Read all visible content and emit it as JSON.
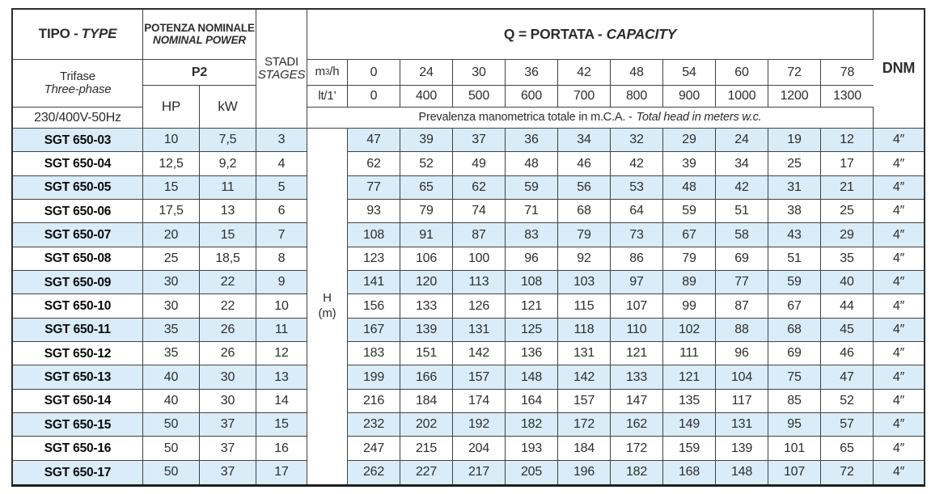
{
  "colors": {
    "row_alt": "#d9ecf8",
    "border_inner": "#424242",
    "border_outer": "#2b2b2b",
    "text": "#2d2d2d"
  },
  "table": {
    "header": {
      "tipo": {
        "it": "TIPO -",
        "en": "TYPE"
      },
      "potenza": {
        "it": "POTENZA NOMINALE",
        "en": "NOMINAL POWER"
      },
      "p2": "P2",
      "hp": "HP",
      "kw": "kW",
      "stadi": {
        "it": "STADI",
        "en": "STAGES"
      },
      "capacity": {
        "it": "Q = PORTATA -",
        "en": "CAPACITY"
      },
      "dnm": "DNM",
      "phase": {
        "it": "Trifase",
        "en": "Three-phase"
      },
      "voltage": "230/400V-50Hz",
      "m3h": {
        "pre": "m",
        "sup": "3",
        "post": "/h"
      },
      "lt": "lt/1’",
      "m3h_values": [
        "0",
        "24",
        "30",
        "36",
        "42",
        "48",
        "54",
        "60",
        "72",
        "78"
      ],
      "lt_values": [
        "0",
        "400",
        "500",
        "600",
        "700",
        "800",
        "900",
        "1000",
        "1200",
        "1300"
      ],
      "prevalenza": {
        "it": "Prevalenza manometrica totale in m.C.A. -",
        "en": "Total head in meters w.c."
      },
      "h_unit": {
        "line1": "H",
        "line2": "(m)"
      }
    },
    "rows": [
      {
        "model": "SGT 650-03",
        "hp": "10",
        "kw": "7,5",
        "stages": "3",
        "head": [
          47,
          39,
          37,
          36,
          34,
          32,
          29,
          24,
          19,
          12
        ],
        "dnm": "4″"
      },
      {
        "model": "SGT 650-04",
        "hp": "12,5",
        "kw": "9,2",
        "stages": "4",
        "head": [
          62,
          52,
          49,
          48,
          46,
          42,
          39,
          34,
          25,
          17
        ],
        "dnm": "4″"
      },
      {
        "model": "SGT 650-05",
        "hp": "15",
        "kw": "11",
        "stages": "5",
        "head": [
          77,
          65,
          62,
          59,
          56,
          53,
          48,
          42,
          31,
          21
        ],
        "dnm": "4″"
      },
      {
        "model": "SGT 650-06",
        "hp": "17,5",
        "kw": "13",
        "stages": "6",
        "head": [
          93,
          79,
          74,
          71,
          68,
          64,
          59,
          51,
          38,
          25
        ],
        "dnm": "4″"
      },
      {
        "model": "SGT 650-07",
        "hp": "20",
        "kw": "15",
        "stages": "7",
        "head": [
          108,
          91,
          87,
          83,
          79,
          73,
          67,
          58,
          43,
          29
        ],
        "dnm": "4″"
      },
      {
        "model": "SGT 650-08",
        "hp": "25",
        "kw": "18,5",
        "stages": "8",
        "head": [
          123,
          106,
          100,
          96,
          92,
          86,
          79,
          69,
          51,
          35
        ],
        "dnm": "4″"
      },
      {
        "model": "SGT 650-09",
        "hp": "30",
        "kw": "22",
        "stages": "9",
        "head": [
          141,
          120,
          113,
          108,
          103,
          97,
          89,
          77,
          59,
          40
        ],
        "dnm": "4″"
      },
      {
        "model": "SGT 650-10",
        "hp": "30",
        "kw": "22",
        "stages": "10",
        "head": [
          156,
          133,
          126,
          121,
          115,
          107,
          99,
          87,
          67,
          44
        ],
        "dnm": "4″"
      },
      {
        "model": "SGT 650-11",
        "hp": "35",
        "kw": "26",
        "stages": "11",
        "head": [
          167,
          139,
          131,
          125,
          118,
          110,
          102,
          88,
          68,
          45
        ],
        "dnm": "4″"
      },
      {
        "model": "SGT 650-12",
        "hp": "35",
        "kw": "26",
        "stages": "12",
        "head": [
          183,
          151,
          142,
          136,
          131,
          121,
          111,
          96,
          69,
          46
        ],
        "dnm": "4″"
      },
      {
        "model": "SGT 650-13",
        "hp": "40",
        "kw": "30",
        "stages": "13",
        "head": [
          199,
          166,
          157,
          148,
          142,
          133,
          121,
          104,
          75,
          47
        ],
        "dnm": "4″"
      },
      {
        "model": "SGT 650-14",
        "hp": "40",
        "kw": "30",
        "stages": "14",
        "head": [
          216,
          184,
          174,
          164,
          157,
          147,
          135,
          117,
          85,
          52
        ],
        "dnm": "4″"
      },
      {
        "model": "SGT 650-15",
        "hp": "50",
        "kw": "37",
        "stages": "15",
        "head": [
          232,
          202,
          192,
          182,
          172,
          162,
          149,
          131,
          95,
          57
        ],
        "dnm": "4″"
      },
      {
        "model": "SGT 650-16",
        "hp": "50",
        "kw": "37",
        "stages": "16",
        "head": [
          247,
          215,
          204,
          193,
          184,
          172,
          159,
          139,
          101,
          65
        ],
        "dnm": "4″"
      },
      {
        "model": "SGT 650-17",
        "hp": "50",
        "kw": "37",
        "stages": "17",
        "head": [
          262,
          227,
          217,
          205,
          196,
          182,
          168,
          148,
          107,
          72
        ],
        "dnm": "4″"
      }
    ]
  }
}
